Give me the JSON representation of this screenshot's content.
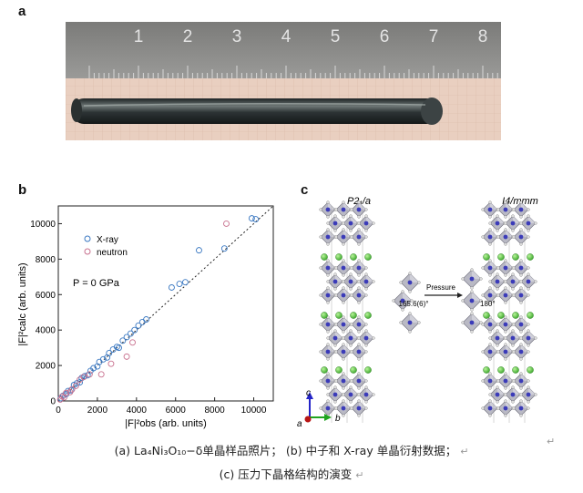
{
  "panels": {
    "a": {
      "label": "a",
      "ruler_numbers": [
        "1",
        "2",
        "3",
        "4",
        "5",
        "6",
        "7",
        "8"
      ]
    },
    "b": {
      "label": "b"
    },
    "c": {
      "label": "c",
      "left_structure": "P2₁/a",
      "right_structure": "I4/mmm",
      "angle_left": "165.6(6)°",
      "pressure_label": "Pressure",
      "angle_right": "180°",
      "axes": {
        "a": "a",
        "b": "b",
        "c": "c"
      }
    }
  },
  "chart_data": {
    "type": "scatter",
    "xlabel": "|F|²obs (arb. units)",
    "ylabel": "|F|²calc (arb. units)",
    "xlim": [
      0,
      11000
    ],
    "ylim": [
      0,
      11000
    ],
    "xticks": [
      0,
      2000,
      4000,
      6000,
      8000,
      10000
    ],
    "yticks": [
      0,
      2000,
      4000,
      6000,
      8000,
      10000
    ],
    "annotation": "P = 0 GPa",
    "legend_position": "top-left",
    "guide_line": "dotted diagonal y = x",
    "series": [
      {
        "name": "X-ray",
        "color": "#3a78c2",
        "points": [
          [
            120,
            150
          ],
          [
            250,
            300
          ],
          [
            400,
            380
          ],
          [
            500,
            560
          ],
          [
            650,
            600
          ],
          [
            800,
            900
          ],
          [
            950,
            1000
          ],
          [
            1100,
            1050
          ],
          [
            1200,
            1300
          ],
          [
            1350,
            1400
          ],
          [
            1500,
            1450
          ],
          [
            1650,
            1700
          ],
          [
            1800,
            1850
          ],
          [
            2000,
            1950
          ],
          [
            2100,
            2200
          ],
          [
            2300,
            2350
          ],
          [
            2500,
            2450
          ],
          [
            2600,
            2700
          ],
          [
            2800,
            2900
          ],
          [
            3000,
            3050
          ],
          [
            3100,
            3000
          ],
          [
            3300,
            3400
          ],
          [
            3500,
            3600
          ],
          [
            3700,
            3800
          ],
          [
            3900,
            4000
          ],
          [
            4100,
            4250
          ],
          [
            4300,
            4450
          ],
          [
            4500,
            4600
          ],
          [
            5800,
            6400
          ],
          [
            6200,
            6600
          ],
          [
            6500,
            6700
          ],
          [
            7200,
            8500
          ],
          [
            8500,
            8600
          ],
          [
            9900,
            10300
          ],
          [
            10100,
            10250
          ]
        ]
      },
      {
        "name": "neutron",
        "color": "#c8708e",
        "points": [
          [
            100,
            80
          ],
          [
            200,
            250
          ],
          [
            300,
            200
          ],
          [
            400,
            450
          ],
          [
            600,
            500
          ],
          [
            700,
            650
          ],
          [
            900,
            850
          ],
          [
            1100,
            1200
          ],
          [
            1300,
            1350
          ],
          [
            1600,
            1500
          ],
          [
            2200,
            1500
          ],
          [
            2700,
            2100
          ],
          [
            3500,
            2500
          ],
          [
            3800,
            3300
          ],
          [
            8600,
            10000
          ]
        ]
      }
    ]
  },
  "caption": {
    "line1_part_a": "(a)",
    "line1_text_a": "La₄Ni₃O₁₀−δ单晶样品照片；",
    "line1_part_b": "(b)",
    "line1_text_b": "中子和 X-ray 单晶衍射数据；",
    "line2_part_c": "(c)",
    "line2_text_c": "压力下晶格结构的演变",
    "para_mark": "↵"
  }
}
